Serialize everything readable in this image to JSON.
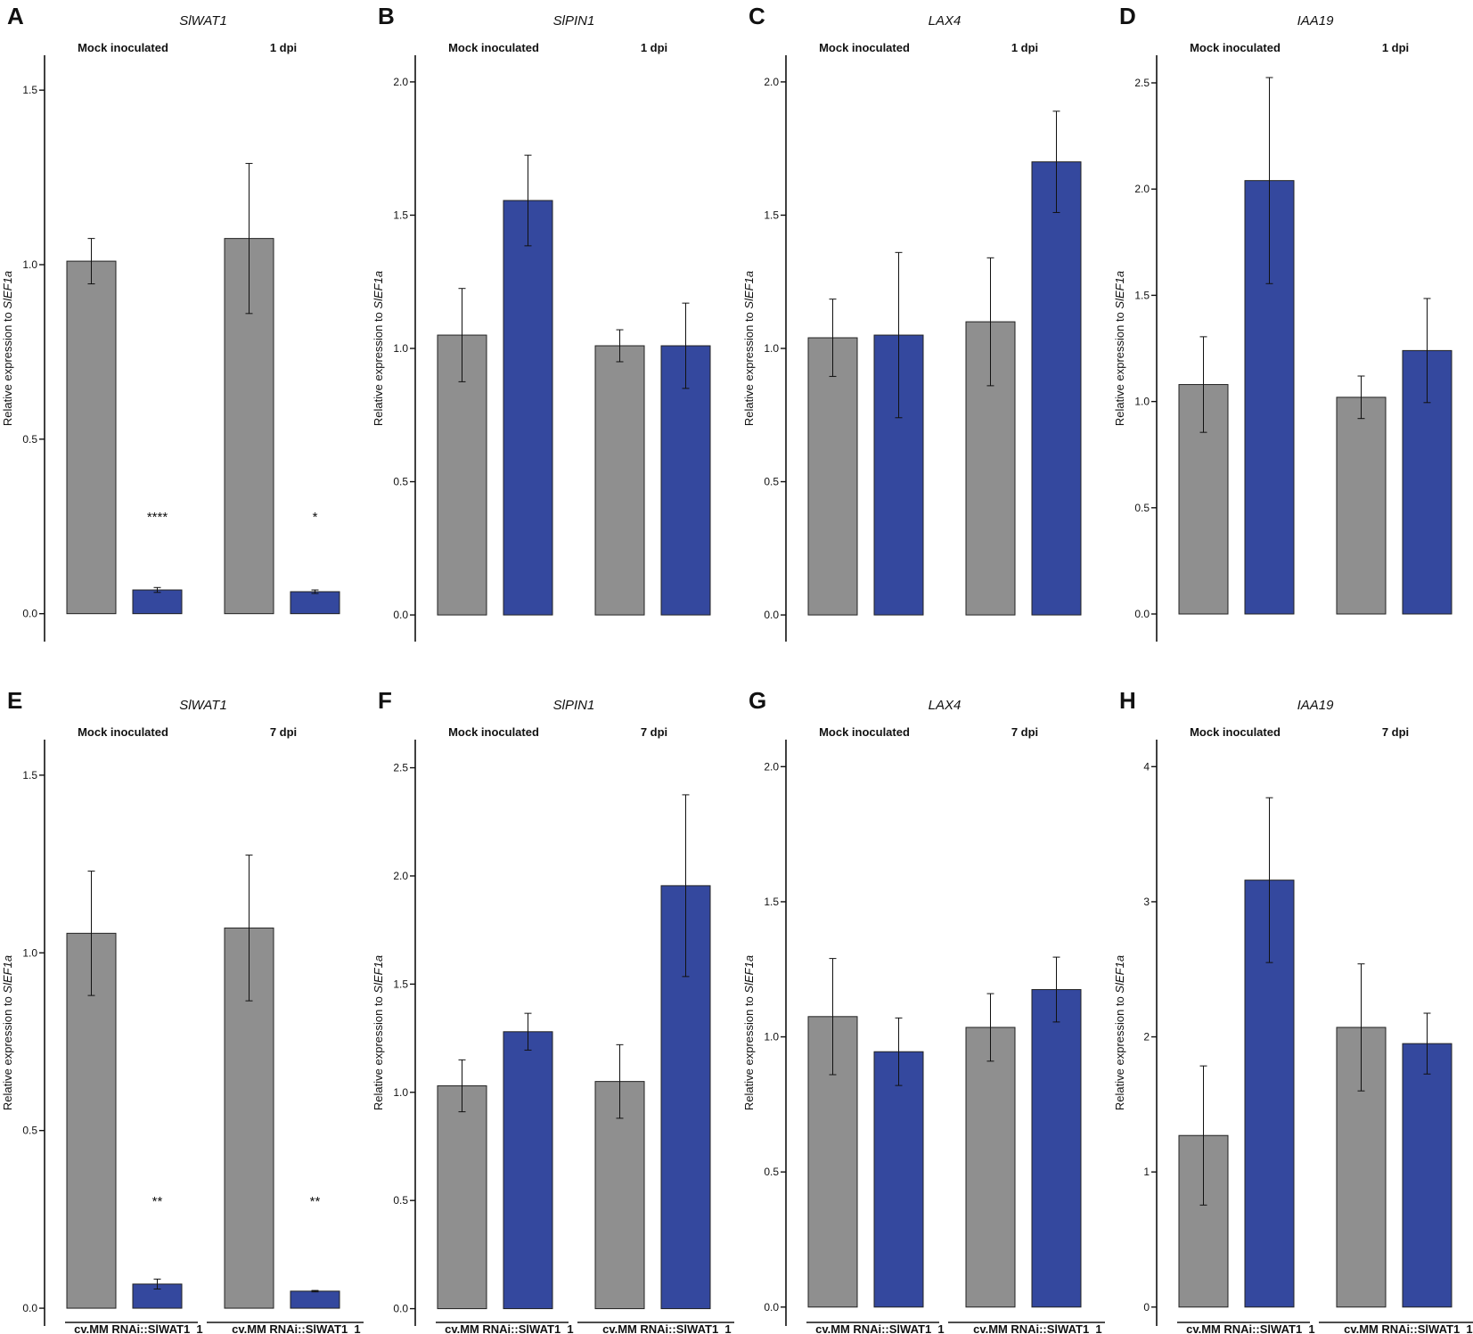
{
  "colors": {
    "cvmm_bar": "#8f8f8f",
    "rnai_bar": "#34489e",
    "bar_edge": "#222222",
    "axis": "#111111"
  },
  "ylabel": {
    "prefix": "Relative expression to ",
    "gene": "SlEF1a"
  },
  "x_categories": [
    "cv.MM",
    "RNAi::SlWAT1_1",
    "cv.MM",
    "RNAi::SlWAT1_1"
  ],
  "chart_data": [
    {
      "panel": "A",
      "type": "bar",
      "title": "SlWAT1",
      "groups": [
        "Mock inoculated",
        "1 dpi"
      ],
      "categories": [
        "cv.MM",
        "RNAi::SlWAT1_1",
        "cv.MM",
        "RNAi::SlWAT1_1"
      ],
      "values": [
        1.01,
        0.068,
        1.075,
        0.063
      ],
      "errors": [
        0.065,
        0.007,
        0.215,
        0.005
      ],
      "significance": [
        "",
        "****",
        "",
        "*"
      ],
      "yticks": [
        0.0,
        0.5,
        1.0,
        1.5
      ],
      "ytick_labels": [
        "0.0",
        "0.5",
        "1.0",
        "1.5"
      ],
      "ylim": [
        -0.08,
        1.6
      ]
    },
    {
      "panel": "B",
      "type": "bar",
      "title": "SlPIN1",
      "groups": [
        "Mock inoculated",
        "1 dpi"
      ],
      "categories": [
        "cv.MM",
        "RNAi::SlWAT1_1",
        "cv.MM",
        "RNAi::SlWAT1_1"
      ],
      "values": [
        1.05,
        1.555,
        1.01,
        1.01
      ],
      "errors": [
        0.175,
        0.17,
        0.06,
        0.16
      ],
      "significance": [
        "",
        "",
        "",
        ""
      ],
      "yticks": [
        0.0,
        0.5,
        1.0,
        1.5,
        2.0
      ],
      "ytick_labels": [
        "0.0",
        "0.5",
        "1.0",
        "1.5",
        "2.0"
      ],
      "ylim": [
        -0.1,
        2.1
      ]
    },
    {
      "panel": "C",
      "type": "bar",
      "title": "LAX4",
      "groups": [
        "Mock inoculated",
        "1 dpi"
      ],
      "categories": [
        "cv.MM",
        "RNAi::SlWAT1_1",
        "cv.MM",
        "RNAi::SlWAT1_1"
      ],
      "values": [
        1.04,
        1.05,
        1.1,
        1.7
      ],
      "errors": [
        0.145,
        0.31,
        0.24,
        0.19
      ],
      "significance": [
        "",
        "",
        "",
        ""
      ],
      "yticks": [
        0.0,
        0.5,
        1.0,
        1.5,
        2.0
      ],
      "ytick_labels": [
        "0.0",
        "0.5",
        "1.0",
        "1.5",
        "2.0"
      ],
      "ylim": [
        -0.1,
        2.1
      ]
    },
    {
      "panel": "D",
      "type": "bar",
      "title": "IAA19",
      "groups": [
        "Mock inoculated",
        "1 dpi"
      ],
      "categories": [
        "cv.MM",
        "RNAi::SlWAT1_1",
        "cv.MM",
        "RNAi::SlWAT1_1"
      ],
      "values": [
        1.08,
        2.04,
        1.02,
        1.24
      ],
      "errors": [
        0.225,
        0.485,
        0.1,
        0.245
      ],
      "significance": [
        "",
        "",
        "",
        ""
      ],
      "yticks": [
        0.0,
        0.5,
        1.0,
        1.5,
        2.0,
        2.5
      ],
      "ytick_labels": [
        "0.0",
        "0.5",
        "1.0",
        "1.5",
        "2.0",
        "2.5"
      ],
      "ylim": [
        -0.13,
        2.63
      ]
    },
    {
      "panel": "E",
      "type": "bar",
      "title": "SlWAT1",
      "groups": [
        "Mock inoculated",
        "7 dpi"
      ],
      "categories": [
        "cv.MM",
        "RNAi::SlWAT1_1",
        "cv.MM",
        "RNAi::SlWAT1_1"
      ],
      "values": [
        1.055,
        0.068,
        1.07,
        0.048
      ],
      "errors": [
        0.175,
        0.014,
        0.205,
        0.002
      ],
      "significance": [
        "",
        "**",
        "",
        "**"
      ],
      "yticks": [
        0.0,
        0.5,
        1.0,
        1.5
      ],
      "ytick_labels": [
        "0.0",
        "0.5",
        "1.0",
        "1.5"
      ],
      "ylim": [
        -0.05,
        1.6
      ]
    },
    {
      "panel": "F",
      "type": "bar",
      "title": "SlPIN1",
      "groups": [
        "Mock inoculated",
        "7 dpi"
      ],
      "categories": [
        "cv.MM",
        "RNAi::SlWAT1_1",
        "cv.MM",
        "RNAi::SlWAT1_1"
      ],
      "values": [
        1.03,
        1.28,
        1.05,
        1.955
      ],
      "errors": [
        0.12,
        0.085,
        0.17,
        0.42
      ],
      "significance": [
        "",
        "",
        "",
        ""
      ],
      "yticks": [
        0.0,
        0.5,
        1.0,
        1.5,
        2.0,
        2.5
      ],
      "ytick_labels": [
        "0.0",
        "0.5",
        "1.0",
        "1.5",
        "2.0",
        "2.5"
      ],
      "ylim": [
        -0.08,
        2.63
      ]
    },
    {
      "panel": "G",
      "type": "bar",
      "title": "LAX4",
      "groups": [
        "Mock inoculated",
        "7 dpi"
      ],
      "categories": [
        "cv.MM",
        "RNAi::SlWAT1_1",
        "cv.MM",
        "RNAi::SlWAT1_1"
      ],
      "values": [
        1.075,
        0.945,
        1.035,
        1.175
      ],
      "errors": [
        0.215,
        0.125,
        0.125,
        0.12
      ],
      "significance": [
        "",
        "",
        "",
        ""
      ],
      "yticks": [
        0.0,
        0.5,
        1.0,
        1.5,
        2.0
      ],
      "ytick_labels": [
        "0.0",
        "0.5",
        "1.0",
        "1.5",
        "2.0"
      ],
      "ylim": [
        -0.07,
        2.1
      ]
    },
    {
      "panel": "H",
      "type": "bar",
      "title": "IAA19",
      "groups": [
        "Mock inoculated",
        "7 dpi"
      ],
      "categories": [
        "cv.MM",
        "RNAi::SlWAT1_1",
        "cv.MM",
        "RNAi::SlWAT1_1"
      ],
      "values": [
        1.27,
        3.16,
        2.07,
        1.95
      ],
      "errors": [
        0.515,
        0.61,
        0.47,
        0.225
      ],
      "significance": [
        "",
        "",
        "",
        ""
      ],
      "yticks": [
        0,
        1,
        2,
        3,
        4
      ],
      "ytick_labels": [
        "0",
        "1",
        "2",
        "3",
        "4"
      ],
      "ylim": [
        -0.14,
        4.2
      ]
    }
  ]
}
